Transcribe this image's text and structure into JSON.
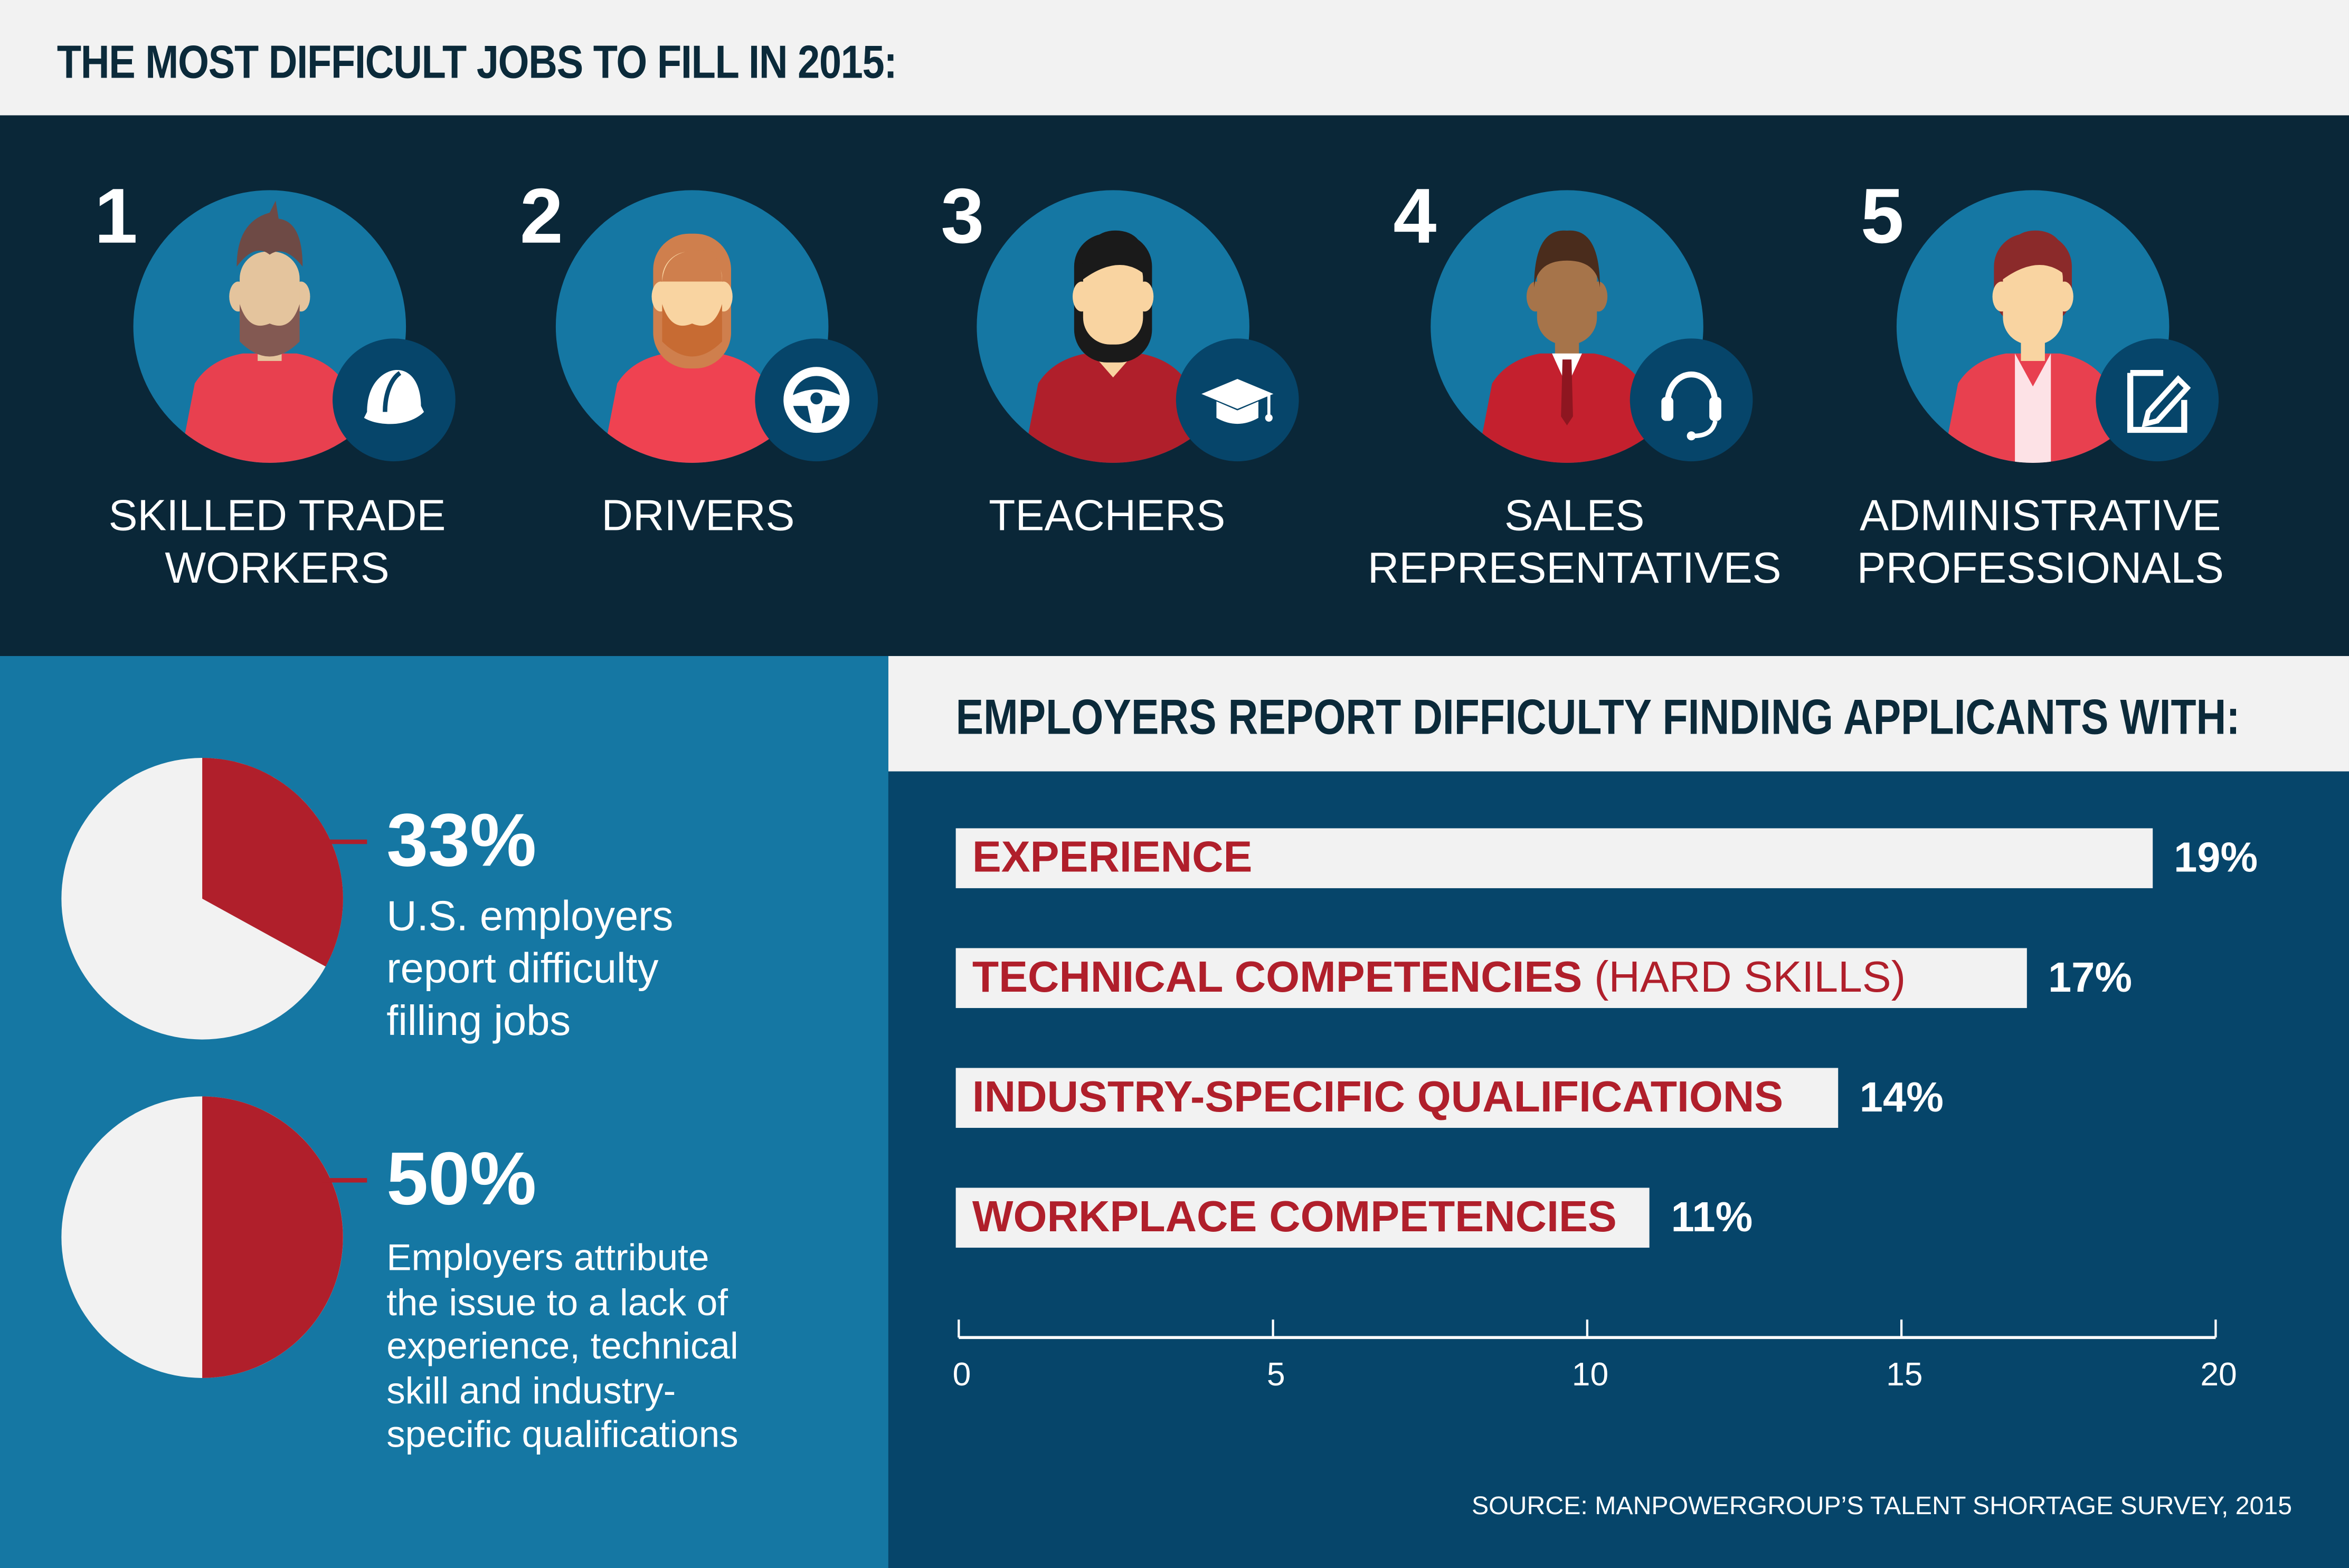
{
  "header": {
    "title": "THE MOST DIFFICULT JOBS TO FILL IN 2015:"
  },
  "jobs": [
    {
      "rank": "1",
      "label_lines": [
        "SKILLED TRADE",
        "WORKERS"
      ],
      "badge_icon": "hard-hat-icon",
      "hair": "#6e4a45",
      "skin": "#e4c49d",
      "beard": "#835952",
      "shirt": "#e8404f"
    },
    {
      "rank": "2",
      "label_lines": [
        "DRIVERS",
        ""
      ],
      "badge_icon": "steering-wheel-icon",
      "hair": "#cf7f4d",
      "skin": "#f9d4a1",
      "beard": "#c76b33",
      "shirt": "#ef4251"
    },
    {
      "rank": "3",
      "label_lines": [
        "TEACHERS",
        ""
      ],
      "badge_icon": "graduation-cap-icon",
      "hair": "#1a1a1a",
      "skin": "#f9d4a1",
      "beard": "",
      "shirt": "#b01f2b"
    },
    {
      "rank": "4",
      "label_lines": [
        "SALES",
        "REPRESENTATIVES"
      ],
      "badge_icon": "headset-icon",
      "hair": "#4a2c1c",
      "skin": "#a6744a",
      "beard": "",
      "shirt": "#c4202e"
    },
    {
      "rank": "5",
      "label_lines": [
        "ADMINISTRATIVE",
        "PROFESSIONALS"
      ],
      "badge_icon": "edit-document-icon",
      "hair": "#8b2a2a",
      "skin": "#f9d4a1",
      "beard": "",
      "shirt": "#e8404f"
    }
  ],
  "stats": [
    {
      "value": "33%",
      "fraction": 0.33,
      "description_lines": [
        "U.S. employers",
        "report difficulty",
        "filling jobs"
      ]
    },
    {
      "value": "50%",
      "fraction": 0.5,
      "description_lines": [
        "Employers attribute",
        "the issue to a lack of",
        "experience, technical",
        "skill and industry-",
        "specific qualifications"
      ]
    }
  ],
  "colors": {
    "red": "#b01f2b",
    "light": "#f2f2f2",
    "navy": "#0a2738",
    "blue": "#1577a3",
    "dark_blue": "#06456a"
  },
  "chart_data": {
    "type": "bar",
    "orientation": "horizontal",
    "title": "EMPLOYERS REPORT DIFFICULTY FINDING APPLICANTS WITH:",
    "categories": [
      "EXPERIENCE",
      "TECHNICAL COMPETENCIES",
      "INDUSTRY-SPECIFIC QUALIFICATIONS",
      "WORKPLACE COMPETENCIES"
    ],
    "category_suffixes": [
      "",
      "(HARD SKILLS)",
      "",
      ""
    ],
    "values": [
      19,
      17,
      14,
      11
    ],
    "value_labels": [
      "19%",
      "17%",
      "14%",
      "11%"
    ],
    "xlim": [
      0,
      20
    ],
    "xticks": [
      0,
      5,
      10,
      15,
      20
    ],
    "xtick_labels": [
      "0",
      "5",
      "10",
      "15",
      "20"
    ],
    "grid": false
  },
  "source": "SOURCE: MANPOWERGROUP’S TALENT SHORTAGE SURVEY, 2015"
}
